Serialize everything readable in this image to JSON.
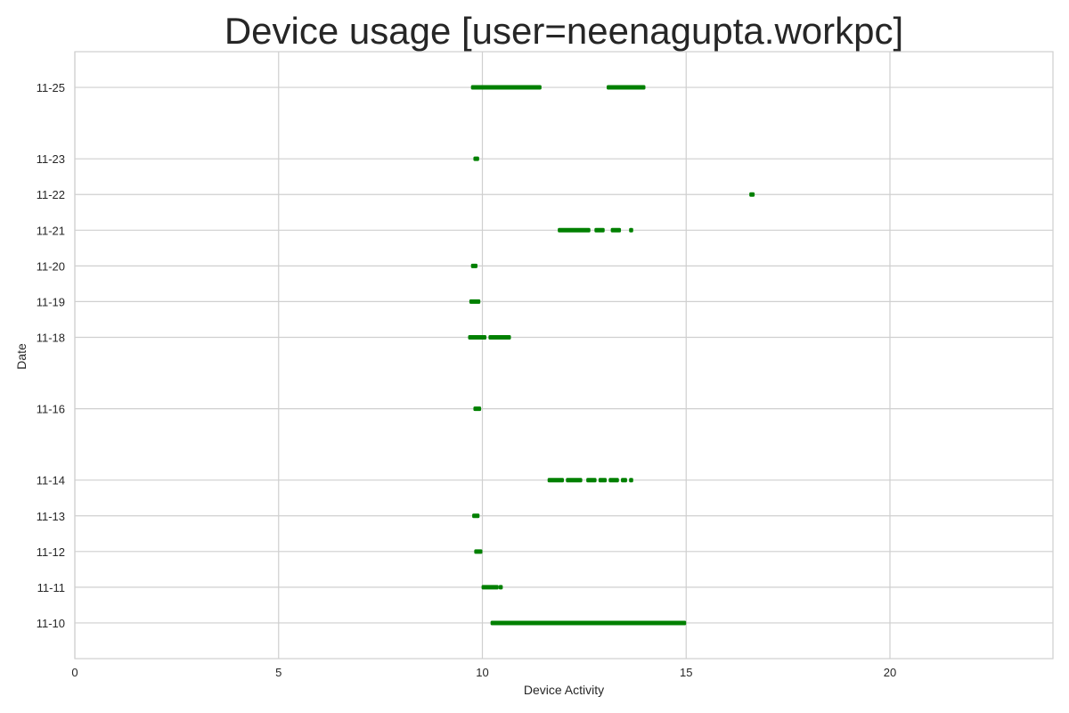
{
  "chart_data": {
    "type": "broken-bar",
    "title": "Device usage [user=neenagupta.workpc]",
    "xlabel": "Device Activity",
    "ylabel": "Date",
    "xlim": [
      0,
      24
    ],
    "xticks": [
      0,
      5,
      10,
      15,
      20
    ],
    "ylim": [
      "11-09",
      "11-26"
    ],
    "grid": true,
    "bar_color": "#008000",
    "rows": [
      {
        "date": "11-25",
        "intervals": [
          [
            9.72,
            11.45
          ],
          [
            13.05,
            14.0
          ]
        ]
      },
      {
        "date": "11-23",
        "intervals": [
          [
            9.78,
            9.92
          ]
        ]
      },
      {
        "date": "11-22",
        "intervals": [
          [
            16.55,
            16.68
          ]
        ]
      },
      {
        "date": "11-21",
        "intervals": [
          [
            11.85,
            12.65
          ],
          [
            12.75,
            13.0
          ],
          [
            13.15,
            13.4
          ],
          [
            13.6,
            13.7
          ]
        ]
      },
      {
        "date": "11-20",
        "intervals": [
          [
            9.72,
            9.88
          ]
        ]
      },
      {
        "date": "11-19",
        "intervals": [
          [
            9.68,
            9.95
          ]
        ]
      },
      {
        "date": "11-18",
        "intervals": [
          [
            9.65,
            10.1
          ],
          [
            10.15,
            10.7
          ]
        ]
      },
      {
        "date": "11-16",
        "intervals": [
          [
            9.78,
            9.97
          ]
        ]
      },
      {
        "date": "11-14",
        "intervals": [
          [
            11.6,
            12.0
          ],
          [
            12.05,
            12.45
          ],
          [
            12.55,
            12.8
          ],
          [
            12.85,
            13.05
          ],
          [
            13.1,
            13.35
          ],
          [
            13.4,
            13.55
          ],
          [
            13.6,
            13.7
          ]
        ]
      },
      {
        "date": "11-13",
        "intervals": [
          [
            9.75,
            9.93
          ]
        ]
      },
      {
        "date": "11-12",
        "intervals": [
          [
            9.8,
            10.0
          ]
        ]
      },
      {
        "date": "11-11",
        "intervals": [
          [
            9.98,
            10.4
          ],
          [
            10.4,
            10.5
          ]
        ]
      },
      {
        "date": "11-10",
        "intervals": [
          [
            10.2,
            15.0
          ]
        ]
      }
    ]
  }
}
